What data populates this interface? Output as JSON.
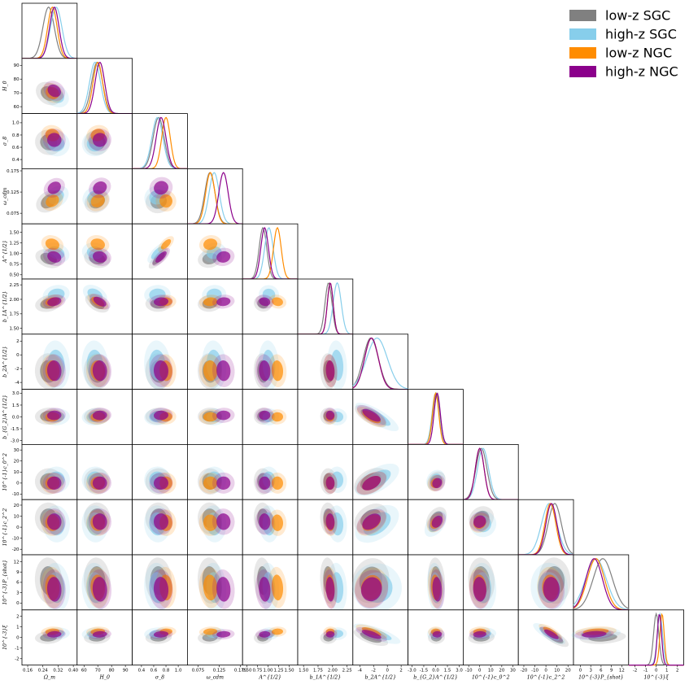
{
  "chart_data": {
    "type": "scatter",
    "title": "",
    "legend": {
      "position": "top-right",
      "entries": [
        {
          "name": "low-z SGC",
          "color": "#808080"
        },
        {
          "name": "high-z SGC",
          "color": "#87ceeb"
        },
        {
          "name": "low-z NGC",
          "color": "#ff8c00"
        },
        {
          "name": "high-z NGC",
          "color": "#8b008b"
        }
      ]
    },
    "parameters": [
      {
        "label": "Ω_m",
        "ticks": [
          "0.16",
          "0.24",
          "0.32",
          "0.40"
        ],
        "tick_values": [
          0.16,
          0.24,
          0.32,
          0.4
        ],
        "range": [
          0.13,
          0.42
        ],
        "means": [
          0.27,
          0.31,
          0.29,
          0.3
        ],
        "sigmas": [
          0.03,
          0.03,
          0.025,
          0.025
        ]
      },
      {
        "label": "H_0",
        "ticks": [
          "60",
          "70",
          "80",
          "90"
        ],
        "tick_values": [
          60,
          70,
          80,
          90
        ],
        "range": [
          55,
          95
        ],
        "means": [
          69.5,
          68,
          70,
          71.5
        ],
        "sigmas": [
          4,
          4,
          3.5,
          3.5
        ]
      },
      {
        "label": "σ_8",
        "ticks": [
          "0.4",
          "0.6",
          "0.8",
          "1.0"
        ],
        "tick_values": [
          0.4,
          0.6,
          0.8,
          1.0
        ],
        "range": [
          0.25,
          1.15
        ],
        "means": [
          0.68,
          0.66,
          0.8,
          0.72
        ],
        "sigmas": [
          0.09,
          0.09,
          0.07,
          0.08
        ]
      },
      {
        "label": "ω_cdm",
        "ticks": [
          "0.075",
          "0.125",
          "0.175"
        ],
        "tick_values": [
          0.075,
          0.125,
          0.175
        ],
        "range": [
          0.05,
          0.18
        ],
        "means": [
          0.103,
          0.113,
          0.104,
          0.135
        ],
        "sigmas": [
          0.012,
          0.012,
          0.011,
          0.011
        ]
      },
      {
        "label": "A^{1/2}",
        "ticks": [
          "0.50",
          "0.75",
          "1.00",
          "1.25",
          "1.50"
        ],
        "tick_values": [
          0.5,
          0.75,
          1.0,
          1.25,
          1.5
        ],
        "range": [
          0.4,
          1.7
        ],
        "means": [
          0.88,
          1.02,
          1.22,
          0.92
        ],
        "sigmas": [
          0.09,
          0.1,
          0.09,
          0.09
        ]
      },
      {
        "label": "b_1A^{1/2}",
        "ticks": [
          "1.50",
          "1.75",
          "2.00",
          "2.25"
        ],
        "tick_values": [
          1.5,
          1.75,
          2.0,
          2.25
        ],
        "range": [
          1.4,
          2.35
        ],
        "means": [
          1.93,
          2.08,
          1.96,
          1.96
        ],
        "sigmas": [
          0.06,
          0.07,
          0.05,
          0.05
        ]
      },
      {
        "label": "b_2A^{1/2}",
        "ticks": [
          "-4",
          "-2",
          "0",
          "2"
        ],
        "tick_values": [
          -4,
          -2,
          0,
          2
        ],
        "range": [
          -5,
          3
        ],
        "means": [
          -2.4,
          -1.5,
          -2.3,
          -2.3
        ],
        "sigmas": [
          1.1,
          1.5,
          1.0,
          1.0
        ]
      },
      {
        "label": "b_{G_2}A^{1/2}",
        "ticks": [
          "-3.0",
          "-1.5",
          "0.0",
          "1.5",
          "3.0"
        ],
        "tick_values": [
          -3,
          -1.5,
          0,
          1.5,
          3
        ],
        "range": [
          -3.5,
          3.5
        ],
        "means": [
          0.1,
          0.0,
          0.0,
          0.2
        ],
        "sigmas": [
          0.45,
          0.45,
          0.4,
          0.4
        ]
      },
      {
        "label": "10^{-1}c_0^2",
        "ticks": [
          "-10",
          "0",
          "10",
          "20",
          "30"
        ],
        "tick_values": [
          -10,
          0,
          10,
          20,
          30
        ],
        "range": [
          -15,
          35
        ],
        "means": [
          1.5,
          3,
          0,
          0
        ],
        "sigmas": [
          5,
          5,
          4,
          4
        ]
      },
      {
        "label": "10^{-1}c_2^2",
        "ticks": [
          "-20",
          "-10",
          "0",
          "10",
          "20"
        ],
        "tick_values": [
          -20,
          -10,
          0,
          10,
          20
        ],
        "range": [
          -25,
          25
        ],
        "means": [
          8,
          3,
          4,
          5
        ],
        "sigmas": [
          6,
          7,
          5,
          5
        ]
      },
      {
        "label": "10^{-3}P_{shot}",
        "ticks": [
          "0",
          "3",
          "6",
          "9",
          "12"
        ],
        "tick_values": [
          0,
          3,
          6,
          9,
          12
        ],
        "range": [
          -2,
          14
        ],
        "means": [
          6.5,
          4.5,
          4.5,
          4
        ],
        "sigmas": [
          2.8,
          3.0,
          2.5,
          2.4
        ]
      },
      {
        "label": "10^{-3}ξ",
        "ticks": [
          "-2",
          "-1",
          "0",
          "1",
          "2"
        ],
        "tick_values": [
          -2,
          -1,
          0,
          1,
          2
        ],
        "range": [
          -2.6,
          2.6
        ],
        "means": [
          0.0,
          0.35,
          0.55,
          0.3
        ],
        "sigmas": [
          0.25,
          0.25,
          0.2,
          0.2
        ]
      }
    ],
    "y_tick_labels": {
      "H_0": [
        "60",
        "70",
        "80",
        "90"
      ],
      "σ_8": [
        "0.4",
        "0.6",
        "0.8",
        "1.0"
      ],
      "ω_cdm": [
        "0.075",
        "0.125",
        "0.175"
      ],
      "A^{1/2}": [
        "0.50",
        "0.75",
        "1.00",
        "1.25",
        "1.50"
      ],
      "b_1A^{1/2}": [
        "1.50",
        "1.75",
        "2.00",
        "2.25"
      ],
      "b_2A^{1/2}": [
        "-4",
        "-2",
        "0",
        "2"
      ],
      "b_{G_2}A^{1/2}": [
        "-3.0",
        "-1.5",
        "0.0",
        "1.5",
        "3.0"
      ],
      "10^{-1}c_0^2": [
        "-10",
        "0",
        "10",
        "20",
        "30"
      ],
      "10^{-1}c_2^2": [
        "-20",
        "-10",
        "0",
        "10",
        "20"
      ],
      "10^{-3}P_{shot}": [
        "0",
        "3",
        "6",
        "9",
        "12"
      ],
      "10^{-3}ξ": [
        "-2",
        "-1",
        "0",
        "1",
        "2"
      ]
    }
  }
}
